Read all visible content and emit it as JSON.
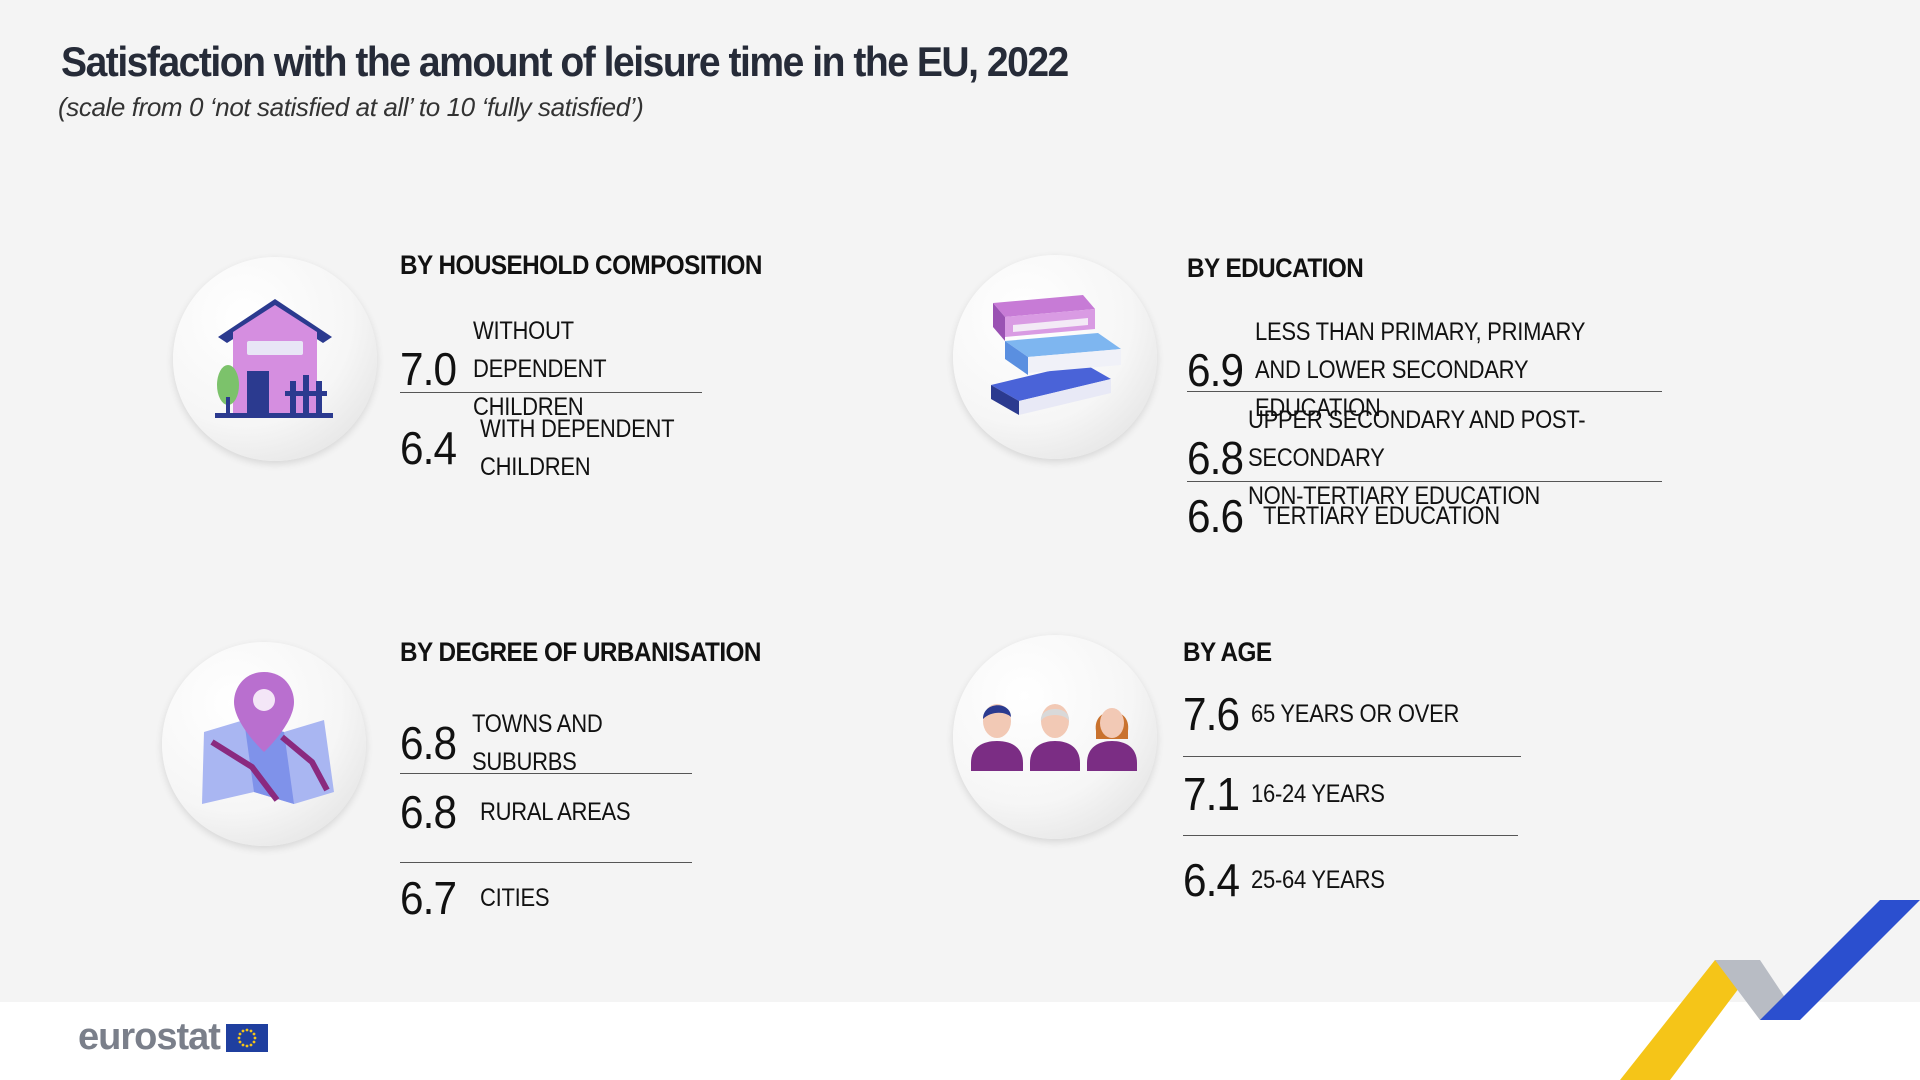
{
  "title": "Satisfaction with the amount of leisure time in the EU, 2022",
  "subtitle": "(scale from 0 ‘not satisfied at all’ to 10 ‘fully satisfied’)",
  "footer": {
    "logo_text": "eurostat"
  },
  "colors": {
    "purple": "#b96fcf",
    "navy": "#2b3a8f",
    "blue": "#3a5bd9",
    "light_blue": "#7eb6f0",
    "yellow": "#f5c518"
  },
  "icons": {
    "household": "house-icon",
    "education": "books-icon",
    "urbanisation": "map-pin-icon",
    "age": "people-icon"
  },
  "chart_data": [
    {
      "type": "table",
      "title": "BY HOUSEHOLD COMPOSITION",
      "rows": [
        {
          "value": "7.0",
          "label": "WITHOUT DEPENDENT\nCHILDREN"
        },
        {
          "value": "6.4",
          "label": "WITH DEPENDENT\nCHILDREN"
        }
      ]
    },
    {
      "type": "table",
      "title": "BY EDUCATION",
      "rows": [
        {
          "value": "6.9",
          "label": "LESS THAN PRIMARY, PRIMARY\nAND LOWER SECONDARY EDUCATION"
        },
        {
          "value": "6.8",
          "label": "UPPER SECONDARY AND POST-SECONDARY\nNON-TERTIARY EDUCATION"
        },
        {
          "value": "6.6",
          "label": "TERTIARY EDUCATION"
        }
      ]
    },
    {
      "type": "table",
      "title": "BY DEGREE OF URBANISATION",
      "rows": [
        {
          "value": "6.8",
          "label": "TOWNS AND SUBURBS"
        },
        {
          "value": "6.8",
          "label": "RURAL AREAS"
        },
        {
          "value": "6.7",
          "label": "CITIES"
        }
      ]
    },
    {
      "type": "table",
      "title": "BY AGE",
      "rows": [
        {
          "value": "7.6",
          "label": "65 YEARS OR OVER"
        },
        {
          "value": "7.1",
          "label": "16-24 YEARS"
        },
        {
          "value": "6.4",
          "label": "25-64 YEARS"
        }
      ]
    }
  ]
}
